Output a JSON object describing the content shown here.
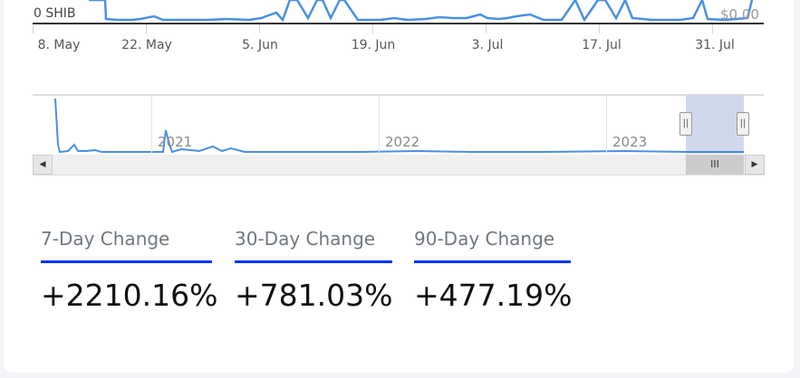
{
  "chart": {
    "y_left_label": "0 SHIB",
    "y_right_label": "$0.00",
    "x_ticks": [
      "8. May",
      "22. May",
      "5. Jun",
      "19. Jun",
      "3. Jul",
      "17. Jul",
      "31. Jul"
    ],
    "navigator_years": [
      "2021",
      "2022",
      "2023"
    ],
    "line_color": "#4a90e2"
  },
  "stats": [
    {
      "label": "7-Day Change",
      "value": "+2210.16%"
    },
    {
      "label": "30-Day Change",
      "value": "+781.03%"
    },
    {
      "label": "90-Day Change",
      "value": "+477.19%"
    }
  ],
  "colors": {
    "accent": "#0033ff",
    "selection": "#d0d9ec"
  }
}
